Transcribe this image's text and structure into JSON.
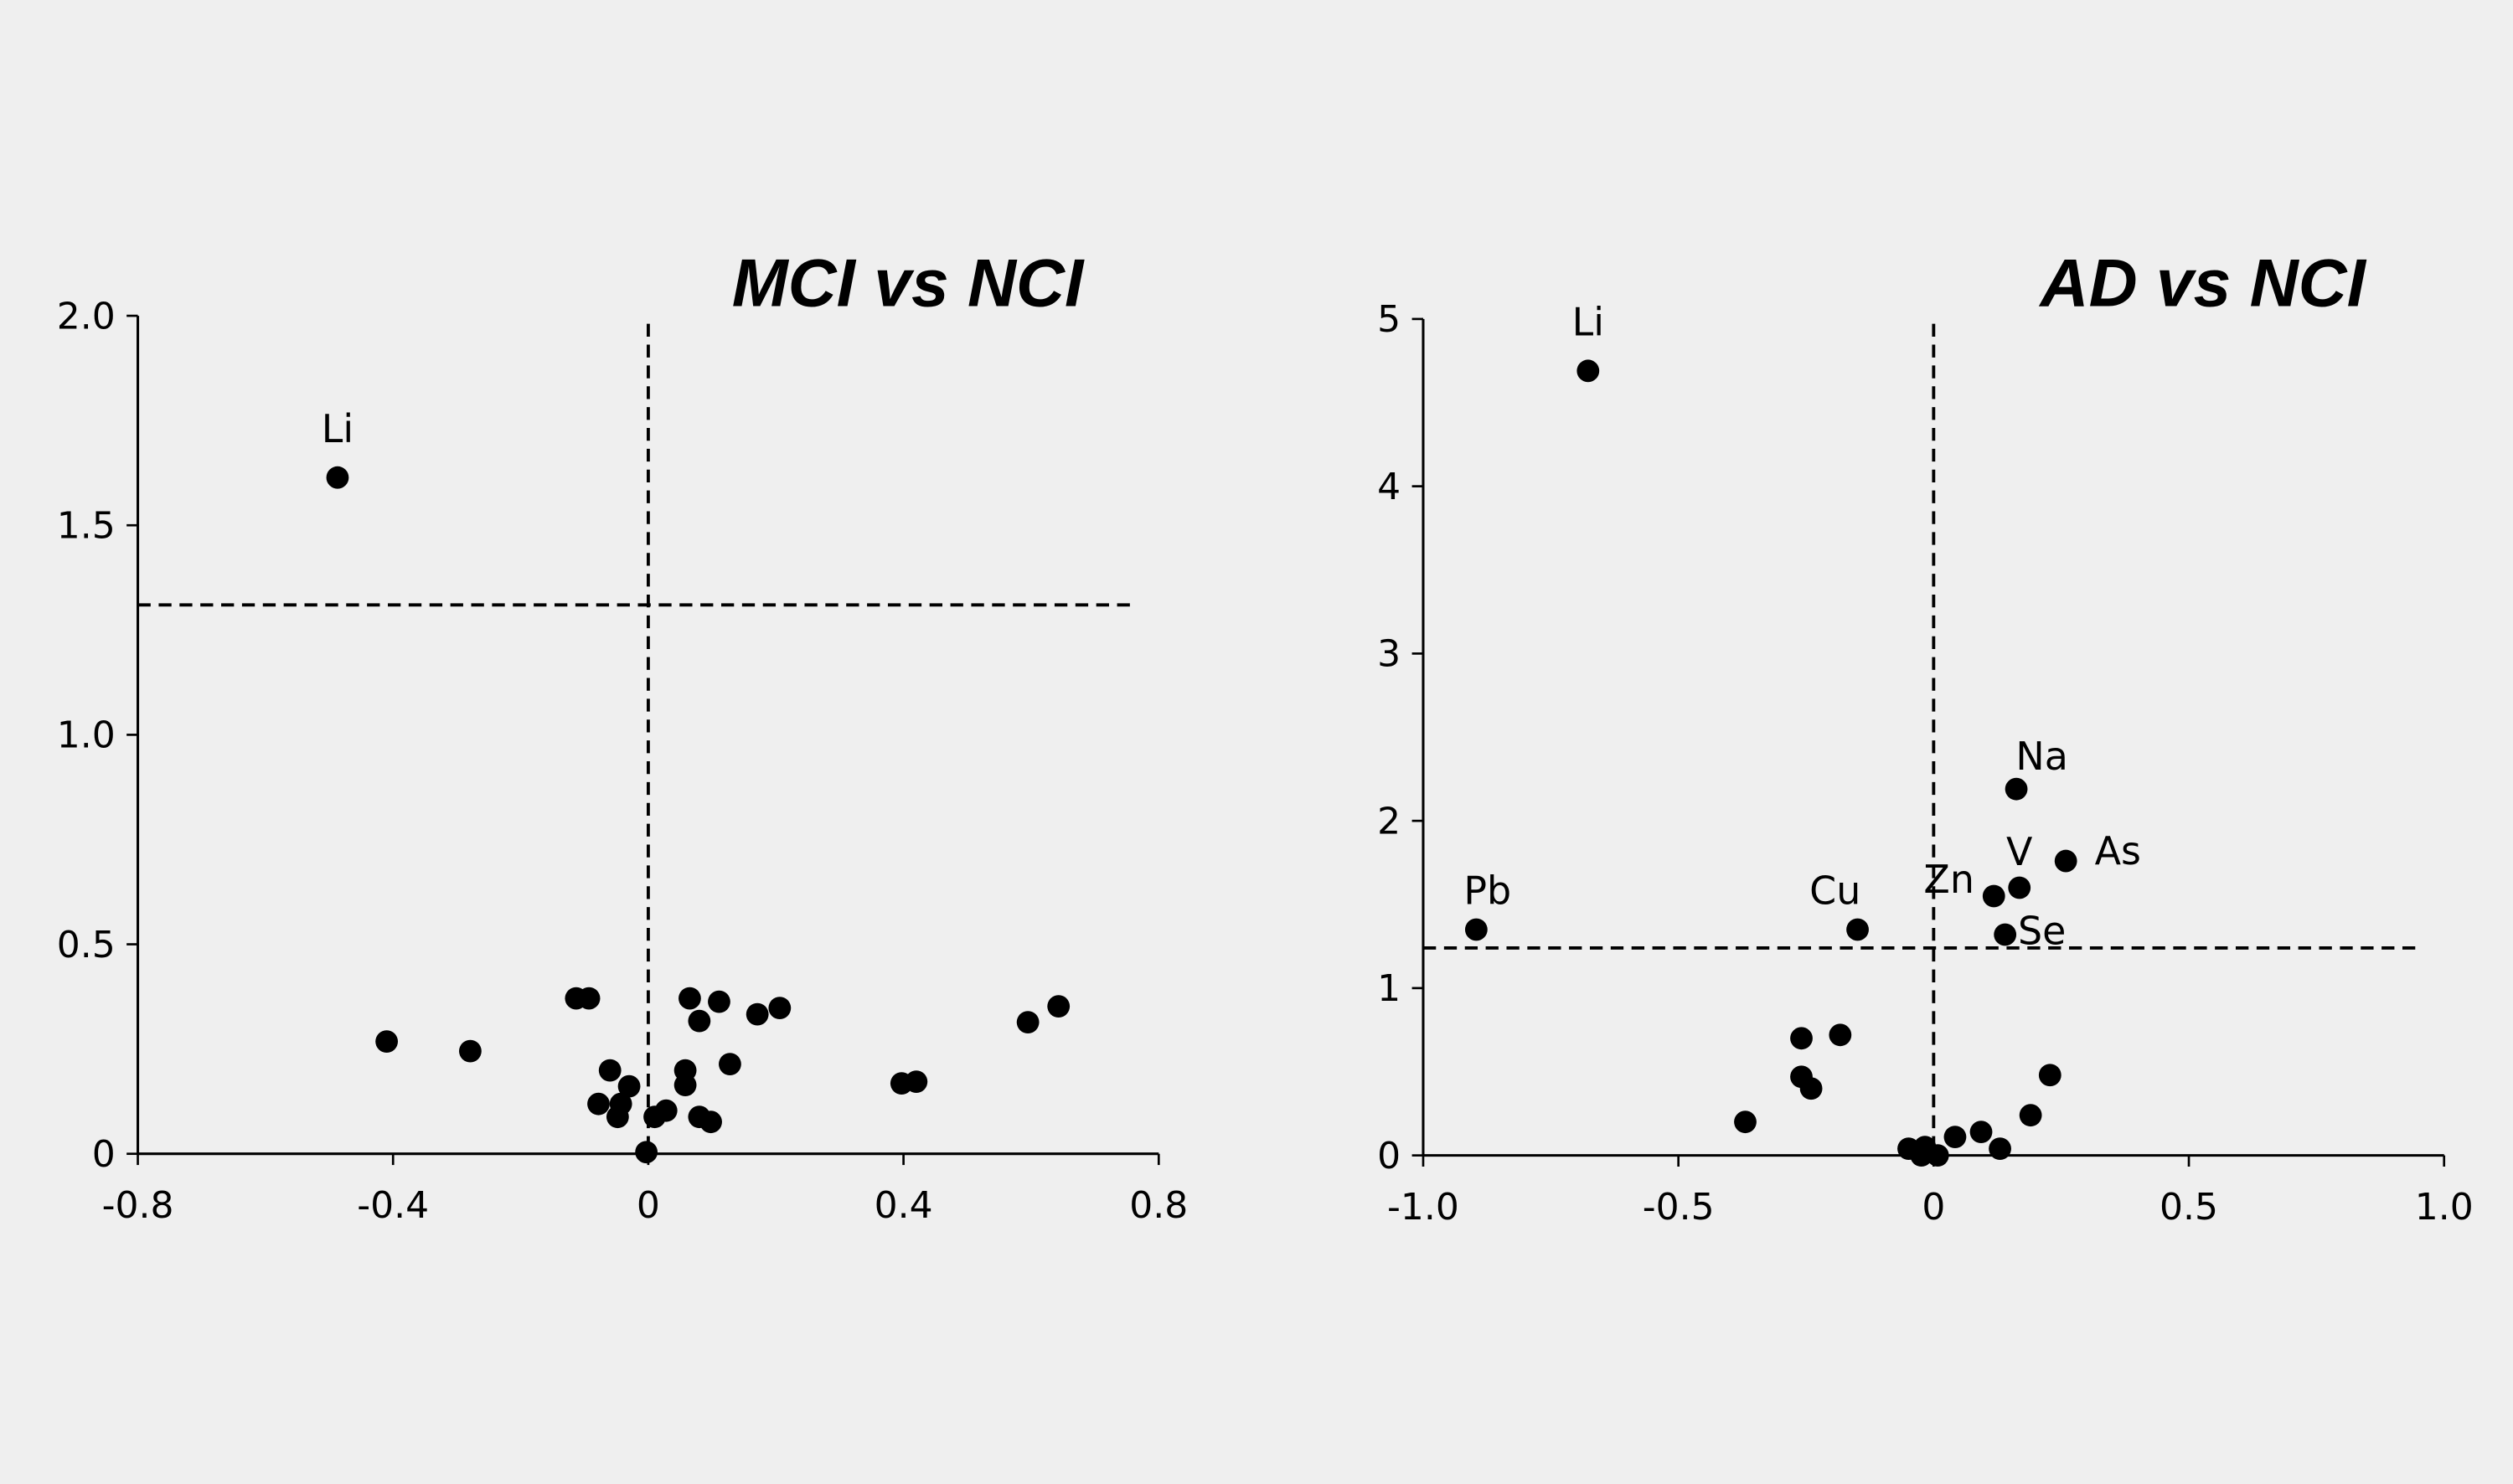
{
  "chart_data": [
    {
      "type": "scatter",
      "title": "MCI vs NCI",
      "xlabel": "",
      "ylabel": "",
      "xlim": [
        -0.8,
        0.8
      ],
      "ylim": [
        0,
        2.0
      ],
      "xticks": [
        -0.8,
        -0.4,
        0,
        0.4,
        0.8
      ],
      "xtick_labels": [
        "-0.8",
        "-0.4",
        "0",
        "0.4",
        "0.8"
      ],
      "yticks": [
        0,
        0.5,
        1.0,
        1.5,
        2.0
      ],
      "ytick_labels": [
        "0",
        "0.5",
        "1.0",
        "1.5",
        "2.0"
      ],
      "threshold_y": 1.31,
      "threshold_x": 0,
      "grid": false,
      "marker_color": "#000000",
      "points": [
        {
          "x": -0.487,
          "y": 1.614,
          "label": "Li"
        },
        {
          "x": -0.41,
          "y": 0.268
        },
        {
          "x": -0.279,
          "y": 0.245
        },
        {
          "x": -0.113,
          "y": 0.371
        },
        {
          "x": -0.093,
          "y": 0.371
        },
        {
          "x": -0.06,
          "y": 0.199
        },
        {
          "x": -0.078,
          "y": 0.119
        },
        {
          "x": -0.043,
          "y": 0.119
        },
        {
          "x": -0.048,
          "y": 0.088
        },
        {
          "x": -0.03,
          "y": 0.161
        },
        {
          "x": -0.003,
          "y": 0.004
        },
        {
          "x": 0.01,
          "y": 0.088
        },
        {
          "x": 0.028,
          "y": 0.103
        },
        {
          "x": 0.065,
          "y": 0.371
        },
        {
          "x": 0.08,
          "y": 0.317
        },
        {
          "x": 0.111,
          "y": 0.363
        },
        {
          "x": 0.058,
          "y": 0.199
        },
        {
          "x": 0.058,
          "y": 0.164
        },
        {
          "x": 0.128,
          "y": 0.214
        },
        {
          "x": 0.08,
          "y": 0.088
        },
        {
          "x": 0.098,
          "y": 0.076
        },
        {
          "x": 0.171,
          "y": 0.333
        },
        {
          "x": 0.206,
          "y": 0.348
        },
        {
          "x": 0.397,
          "y": 0.168
        },
        {
          "x": 0.42,
          "y": 0.172
        },
        {
          "x": 0.595,
          "y": 0.314
        },
        {
          "x": 0.643,
          "y": 0.352
        }
      ]
    },
    {
      "type": "scatter",
      "title": "AD vs NCI",
      "xlabel": "",
      "ylabel": "",
      "xlim": [
        -1.0,
        1.0
      ],
      "ylim": [
        0,
        5
      ],
      "xticks": [
        -1.0,
        -0.5,
        0,
        0.5,
        1.0
      ],
      "xtick_labels": [
        "-1.0",
        "-0.5",
        "0",
        "0.5",
        "1.0"
      ],
      "yticks": [
        0,
        1,
        2,
        3,
        4,
        5
      ],
      "ytick_labels": [
        "0",
        "1",
        "2",
        "3",
        "4",
        "5"
      ],
      "threshold_y": 1.24,
      "threshold_x": 0,
      "grid": false,
      "marker_color": "#000000",
      "points": [
        {
          "x": -0.677,
          "y": 4.69,
          "label": "Li"
        },
        {
          "x": -0.896,
          "y": 1.35,
          "label": "Pb"
        },
        {
          "x": -0.149,
          "y": 1.35,
          "label": "Cu"
        },
        {
          "x": 0.118,
          "y": 1.55,
          "label": "Zn"
        },
        {
          "x": 0.168,
          "y": 1.6,
          "label": "V"
        },
        {
          "x": 0.162,
          "y": 2.19,
          "label": "Na"
        },
        {
          "x": 0.259,
          "y": 1.76,
          "label": "As"
        },
        {
          "x": 0.14,
          "y": 1.32,
          "label": "Se"
        },
        {
          "x": -0.369,
          "y": 0.2
        },
        {
          "x": -0.259,
          "y": 0.7
        },
        {
          "x": -0.259,
          "y": 0.47
        },
        {
          "x": -0.24,
          "y": 0.4
        },
        {
          "x": -0.183,
          "y": 0.72
        },
        {
          "x": -0.049,
          "y": 0.04
        },
        {
          "x": -0.017,
          "y": 0.05
        },
        {
          "x": -0.024,
          "y": 0.0
        },
        {
          "x": 0.008,
          "y": 0.0
        },
        {
          "x": 0.042,
          "y": 0.11
        },
        {
          "x": 0.093,
          "y": 0.14
        },
        {
          "x": 0.13,
          "y": 0.04
        },
        {
          "x": 0.19,
          "y": 0.24
        },
        {
          "x": 0.228,
          "y": 0.48
        }
      ]
    }
  ]
}
